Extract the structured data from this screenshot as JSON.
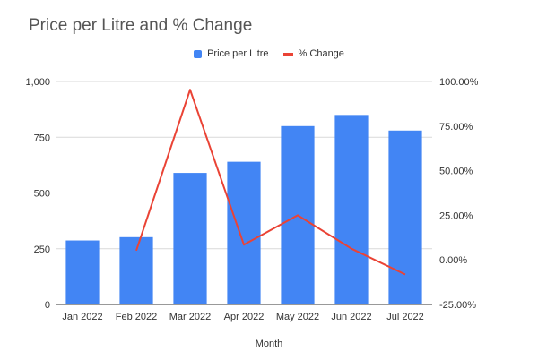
{
  "chart_data": {
    "type": "bar",
    "title": "Price per Litre and % Change",
    "xlabel": "Month",
    "ylabel": "",
    "categories": [
      "Jan 2022",
      "Feb 2022",
      "Mar 2022",
      "Apr 2022",
      "May 2022",
      "Jun 2022",
      "Jul 2022"
    ],
    "series": [
      {
        "name": "Price per Litre",
        "type": "bar",
        "axis": "left",
        "color": "#4285f4",
        "values": [
          287,
          302,
          590,
          640,
          800,
          850,
          780
        ]
      },
      {
        "name": "% Change",
        "type": "line",
        "axis": "right",
        "color": "#ea4335",
        "values": [
          null,
          5.2,
          95.4,
          8.5,
          25.0,
          6.3,
          -8.2
        ]
      }
    ],
    "ylim": [
      0,
      1000
    ],
    "y_ticks": [
      "0",
      "250",
      "500",
      "750",
      "1,000"
    ],
    "y2lim": [
      -25,
      100
    ],
    "y2_ticks": [
      "-25.00%",
      "0.00%",
      "25.00%",
      "50.00%",
      "75.00%",
      "100.00%"
    ],
    "grid": true,
    "legend_position": "top"
  }
}
